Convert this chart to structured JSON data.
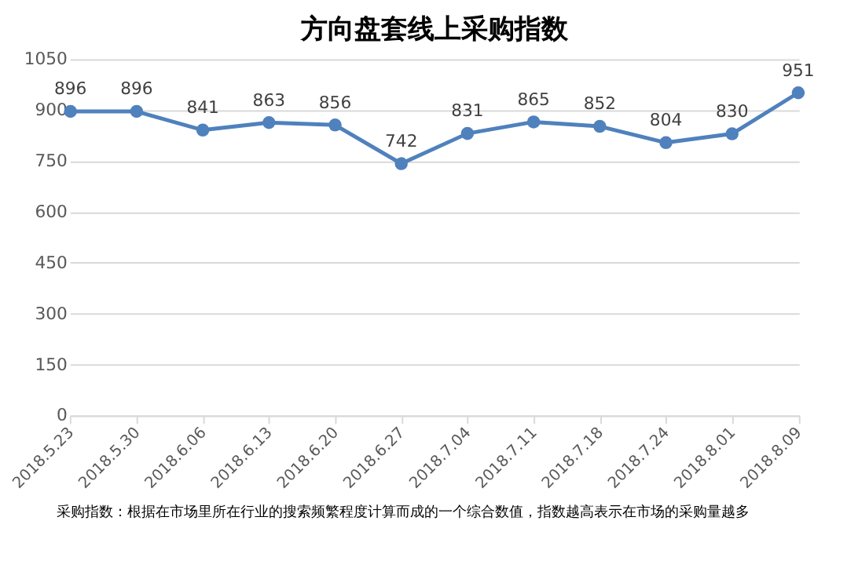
{
  "chart_data": {
    "type": "line",
    "title": "方向盘套线上采购指数",
    "categories": [
      "2018.5.23",
      "2018.5.30",
      "2018.6.06",
      "2018.6.13",
      "2018.6.20",
      "2018.6.27",
      "2018.7.04",
      "2018.7.11",
      "2018.7.18",
      "2018.7.24",
      "2018.8.01",
      "2018.8.09"
    ],
    "series": [
      {
        "color": "#4f81bd",
        "values": [
          896,
          896,
          841,
          863,
          856,
          742,
          831,
          865,
          852,
          804,
          830,
          951
        ]
      }
    ],
    "ylim": [
      0,
      1050
    ],
    "yticks": [
      0,
      150,
      300,
      450,
      600,
      750,
      900,
      1050
    ],
    "grid": "y",
    "marker": "circle",
    "line_style": "solid",
    "data_labels": true,
    "annotations": [
      "采购指数：根据在市场里所在行业的搜索频繁程度计算而成的一个综合数值，指数越高表示在市场的采购量越多"
    ]
  }
}
